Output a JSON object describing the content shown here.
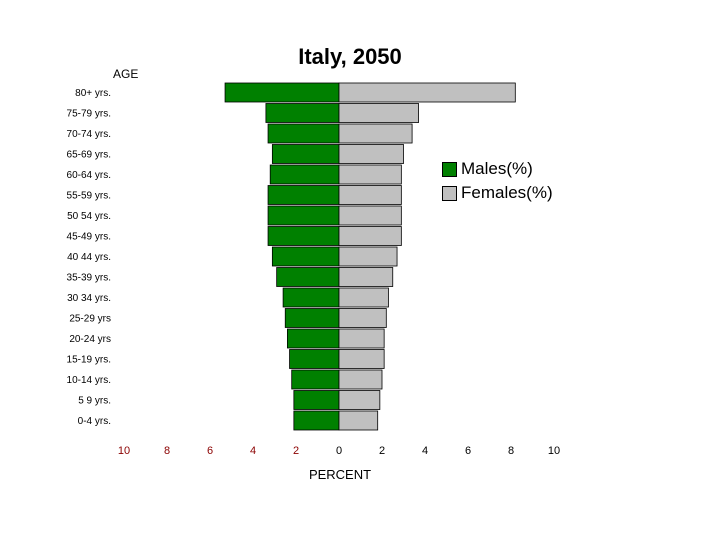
{
  "chart_data": {
    "type": "bar",
    "title": "Italy, 2050",
    "ylabel": "AGE",
    "xlabel": "PERCENT",
    "categories": [
      "80+ yrs.",
      "75-79 yrs.",
      "70-74 yrs.",
      "65-69 yrs.",
      "60-64 yrs.",
      "55-59 yrs.",
      "50 54 yrs.",
      "45-49 yrs.",
      "40 44 yrs.",
      "35-39 yrs.",
      "30 34 yrs.",
      "25-29 yrs",
      "20-24 yrs",
      "15-19 yrs.",
      "10-14 yrs.",
      "5 9 yrs.",
      "0-4 yrs."
    ],
    "series": [
      {
        "name": "Males(%)",
        "color": "#008000",
        "values": [
          5.3,
          3.4,
          3.3,
          3.1,
          3.2,
          3.3,
          3.3,
          3.3,
          3.1,
          2.9,
          2.6,
          2.5,
          2.4,
          2.3,
          2.2,
          2.1,
          2.1
        ]
      },
      {
        "name": "Females(%)",
        "color": "#c0c0c0",
        "values": [
          8.2,
          3.7,
          3.4,
          3.0,
          2.9,
          2.9,
          2.9,
          2.9,
          2.7,
          2.5,
          2.3,
          2.2,
          2.1,
          2.1,
          2.0,
          1.9,
          1.8
        ]
      }
    ],
    "xticks": [
      "10",
      "8",
      "6",
      "4",
      "2",
      "0",
      "2",
      "4",
      "6",
      "8",
      "10"
    ],
    "xlim": [
      -10,
      10
    ],
    "legend": "right"
  }
}
